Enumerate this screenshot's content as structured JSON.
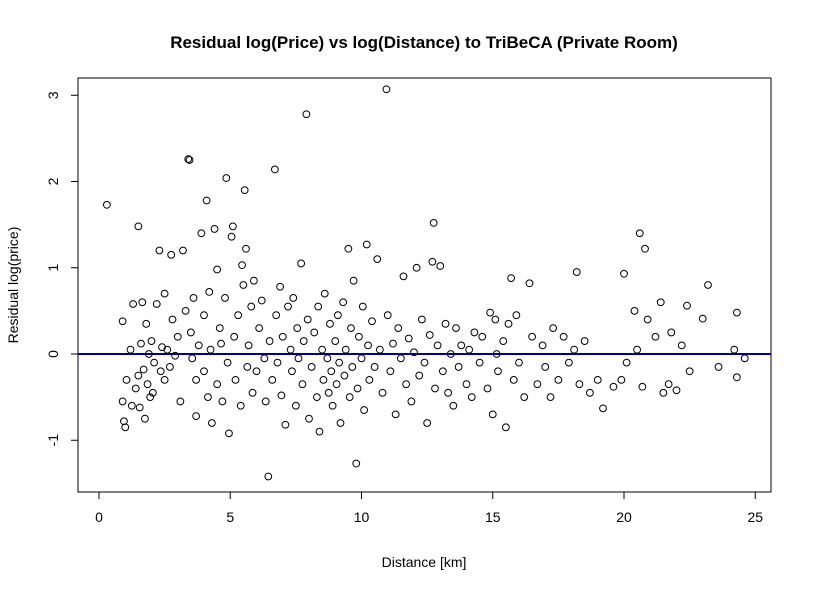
{
  "chart_data": {
    "type": "scatter",
    "title": "Residual log(Price) vs log(Distance) to TriBeCA (Private Room)",
    "xlabel": "Distance [km]",
    "ylabel": "Residual log(price)",
    "xlim": [
      -0.8,
      25.6
    ],
    "ylim": [
      -1.6,
      3.2
    ],
    "x_ticks": [
      0,
      5,
      10,
      15,
      20,
      25
    ],
    "x_tick_labels": [
      "0",
      "5",
      "10",
      "15",
      "20",
      "25"
    ],
    "y_ticks": [
      -1,
      0,
      1,
      2,
      3
    ],
    "y_tick_labels": [
      "-1",
      "0",
      "1",
      "2",
      "3"
    ],
    "grid": false,
    "legend": "none",
    "reference_line": {
      "y": 0,
      "color": "#00008B"
    },
    "marker": "open-circle",
    "point_color": "#000000",
    "points": [
      [
        0.3,
        1.73
      ],
      [
        0.9,
        0.38
      ],
      [
        0.9,
        -0.55
      ],
      [
        0.95,
        -0.78
      ],
      [
        1.0,
        -0.85
      ],
      [
        1.05,
        -0.3
      ],
      [
        1.2,
        0.05
      ],
      [
        1.25,
        -0.6
      ],
      [
        1.3,
        0.58
      ],
      [
        1.4,
        -0.4
      ],
      [
        1.5,
        1.48
      ],
      [
        1.5,
        -0.25
      ],
      [
        1.55,
        -0.62
      ],
      [
        1.6,
        0.12
      ],
      [
        1.65,
        0.6
      ],
      [
        1.7,
        -0.18
      ],
      [
        1.75,
        -0.75
      ],
      [
        1.8,
        0.35
      ],
      [
        1.85,
        -0.35
      ],
      [
        1.9,
        0.0
      ],
      [
        1.95,
        -0.5
      ],
      [
        2.0,
        0.15
      ],
      [
        2.05,
        -0.45
      ],
      [
        2.1,
        -0.1
      ],
      [
        2.2,
        0.58
      ],
      [
        2.3,
        1.2
      ],
      [
        2.35,
        -0.2
      ],
      [
        2.4,
        0.08
      ],
      [
        2.5,
        0.7
      ],
      [
        2.5,
        -0.3
      ],
      [
        2.6,
        0.05
      ],
      [
        2.7,
        -0.15
      ],
      [
        2.75,
        1.15
      ],
      [
        2.8,
        0.4
      ],
      [
        2.9,
        -0.02
      ],
      [
        3.0,
        0.2
      ],
      [
        3.1,
        -0.55
      ],
      [
        3.2,
        1.2
      ],
      [
        3.3,
        0.5
      ],
      [
        3.4,
        2.26
      ],
      [
        3.45,
        2.25
      ],
      [
        3.5,
        0.25
      ],
      [
        3.55,
        -0.05
      ],
      [
        3.6,
        0.65
      ],
      [
        3.7,
        -0.3
      ],
      [
        3.7,
        -0.72
      ],
      [
        3.8,
        0.1
      ],
      [
        3.9,
        1.4
      ],
      [
        4.0,
        0.45
      ],
      [
        4.0,
        -0.2
      ],
      [
        4.1,
        1.78
      ],
      [
        4.15,
        -0.5
      ],
      [
        4.2,
        0.72
      ],
      [
        4.25,
        0.05
      ],
      [
        4.3,
        -0.8
      ],
      [
        4.4,
        1.45
      ],
      [
        4.5,
        0.98
      ],
      [
        4.5,
        -0.35
      ],
      [
        4.6,
        0.3
      ],
      [
        4.65,
        0.12
      ],
      [
        4.7,
        -0.55
      ],
      [
        4.8,
        0.65
      ],
      [
        4.85,
        2.04
      ],
      [
        4.9,
        -0.1
      ],
      [
        4.95,
        -0.92
      ],
      [
        5.05,
        1.36
      ],
      [
        5.1,
        1.48
      ],
      [
        5.15,
        0.2
      ],
      [
        5.2,
        -0.3
      ],
      [
        5.3,
        0.45
      ],
      [
        5.4,
        -0.6
      ],
      [
        5.45,
        1.03
      ],
      [
        5.5,
        0.8
      ],
      [
        5.55,
        1.9
      ],
      [
        5.6,
        1.22
      ],
      [
        5.65,
        -0.15
      ],
      [
        5.7,
        0.1
      ],
      [
        5.8,
        0.55
      ],
      [
        5.85,
        -0.45
      ],
      [
        5.9,
        0.85
      ],
      [
        6.0,
        -0.2
      ],
      [
        6.1,
        0.3
      ],
      [
        6.2,
        0.62
      ],
      [
        6.3,
        -0.05
      ],
      [
        6.35,
        -0.55
      ],
      [
        6.45,
        -1.42
      ],
      [
        6.5,
        0.15
      ],
      [
        6.6,
        -0.3
      ],
      [
        6.7,
        2.14
      ],
      [
        6.75,
        0.45
      ],
      [
        6.8,
        -0.1
      ],
      [
        6.9,
        0.78
      ],
      [
        6.95,
        -0.48
      ],
      [
        7.0,
        0.2
      ],
      [
        7.1,
        -0.82
      ],
      [
        7.2,
        0.55
      ],
      [
        7.3,
        0.05
      ],
      [
        7.35,
        -0.2
      ],
      [
        7.4,
        0.65
      ],
      [
        7.5,
        -0.6
      ],
      [
        7.55,
        0.3
      ],
      [
        7.6,
        -0.05
      ],
      [
        7.7,
        1.05
      ],
      [
        7.75,
        -0.35
      ],
      [
        7.8,
        0.15
      ],
      [
        7.9,
        2.78
      ],
      [
        7.95,
        0.4
      ],
      [
        8.0,
        -0.75
      ],
      [
        8.1,
        -0.15
      ],
      [
        8.2,
        0.25
      ],
      [
        8.3,
        -0.5
      ],
      [
        8.35,
        0.55
      ],
      [
        8.4,
        -0.9
      ],
      [
        8.5,
        0.05
      ],
      [
        8.55,
        -0.3
      ],
      [
        8.6,
        0.7
      ],
      [
        8.7,
        -0.05
      ],
      [
        8.75,
        -0.45
      ],
      [
        8.8,
        0.35
      ],
      [
        8.85,
        -0.2
      ],
      [
        8.9,
        -0.6
      ],
      [
        9.0,
        0.15
      ],
      [
        9.05,
        -0.35
      ],
      [
        9.1,
        0.45
      ],
      [
        9.15,
        -0.1
      ],
      [
        9.2,
        -0.8
      ],
      [
        9.3,
        0.6
      ],
      [
        9.35,
        -0.25
      ],
      [
        9.4,
        0.05
      ],
      [
        9.5,
        1.22
      ],
      [
        9.55,
        -0.5
      ],
      [
        9.6,
        0.3
      ],
      [
        9.65,
        -0.15
      ],
      [
        9.7,
        0.85
      ],
      [
        9.8,
        -1.27
      ],
      [
        9.85,
        -0.4
      ],
      [
        9.9,
        0.2
      ],
      [
        10.0,
        -0.05
      ],
      [
        10.05,
        0.55
      ],
      [
        10.1,
        -0.65
      ],
      [
        10.2,
        1.27
      ],
      [
        10.25,
        0.1
      ],
      [
        10.3,
        -0.3
      ],
      [
        10.4,
        0.38
      ],
      [
        10.5,
        -0.15
      ],
      [
        10.6,
        1.1
      ],
      [
        10.7,
        0.05
      ],
      [
        10.8,
        -0.45
      ],
      [
        10.95,
        3.07
      ],
      [
        11.0,
        0.45
      ],
      [
        11.1,
        -0.2
      ],
      [
        11.2,
        0.12
      ],
      [
        11.3,
        -0.7
      ],
      [
        11.4,
        0.3
      ],
      [
        11.5,
        -0.05
      ],
      [
        11.6,
        0.9
      ],
      [
        11.7,
        -0.35
      ],
      [
        11.8,
        0.18
      ],
      [
        11.9,
        -0.55
      ],
      [
        12.0,
        0.02
      ],
      [
        12.1,
        1.0
      ],
      [
        12.2,
        -0.25
      ],
      [
        12.3,
        0.4
      ],
      [
        12.4,
        -0.1
      ],
      [
        12.5,
        -0.8
      ],
      [
        12.6,
        0.22
      ],
      [
        12.7,
        1.07
      ],
      [
        12.75,
        1.52
      ],
      [
        12.8,
        -0.4
      ],
      [
        12.9,
        0.1
      ],
      [
        13.0,
        1.02
      ],
      [
        13.1,
        -0.2
      ],
      [
        13.2,
        0.35
      ],
      [
        13.3,
        -0.45
      ],
      [
        13.4,
        0.0
      ],
      [
        13.5,
        -0.6
      ],
      [
        13.6,
        0.3
      ],
      [
        13.7,
        -0.15
      ],
      [
        13.8,
        0.1
      ],
      [
        14.0,
        -0.35
      ],
      [
        14.1,
        0.05
      ],
      [
        14.2,
        -0.5
      ],
      [
        14.3,
        0.25
      ],
      [
        14.5,
        -0.1
      ],
      [
        14.6,
        0.2
      ],
      [
        14.8,
        -0.4
      ],
      [
        14.9,
        0.48
      ],
      [
        15.0,
        -0.7
      ],
      [
        15.1,
        0.4
      ],
      [
        15.15,
        0.0
      ],
      [
        15.2,
        -0.2
      ],
      [
        15.4,
        0.15
      ],
      [
        15.5,
        -0.85
      ],
      [
        15.6,
        0.35
      ],
      [
        15.7,
        0.88
      ],
      [
        15.8,
        -0.3
      ],
      [
        15.9,
        0.45
      ],
      [
        16.0,
        -0.1
      ],
      [
        16.2,
        -0.5
      ],
      [
        16.4,
        0.82
      ],
      [
        16.5,
        0.2
      ],
      [
        16.7,
        -0.35
      ],
      [
        16.9,
        0.1
      ],
      [
        17.0,
        -0.15
      ],
      [
        17.2,
        -0.5
      ],
      [
        17.3,
        0.3
      ],
      [
        17.5,
        -0.3
      ],
      [
        17.7,
        0.2
      ],
      [
        17.9,
        -0.1
      ],
      [
        18.1,
        0.05
      ],
      [
        18.2,
        0.95
      ],
      [
        18.3,
        -0.35
      ],
      [
        18.5,
        0.15
      ],
      [
        18.7,
        -0.45
      ],
      [
        19.0,
        -0.3
      ],
      [
        19.2,
        -0.63
      ],
      [
        19.6,
        -0.38
      ],
      [
        19.9,
        -0.3
      ],
      [
        20.0,
        0.93
      ],
      [
        20.1,
        -0.1
      ],
      [
        20.4,
        0.5
      ],
      [
        20.5,
        0.05
      ],
      [
        20.6,
        1.4
      ],
      [
        20.7,
        -0.38
      ],
      [
        20.8,
        1.22
      ],
      [
        20.9,
        0.4
      ],
      [
        21.2,
        0.2
      ],
      [
        21.4,
        0.6
      ],
      [
        21.5,
        -0.45
      ],
      [
        21.7,
        -0.35
      ],
      [
        21.8,
        0.25
      ],
      [
        22.0,
        -0.42
      ],
      [
        22.2,
        0.1
      ],
      [
        22.4,
        0.56
      ],
      [
        22.5,
        -0.2
      ],
      [
        23.0,
        0.41
      ],
      [
        23.2,
        0.8
      ],
      [
        23.6,
        -0.15
      ],
      [
        24.2,
        0.05
      ],
      [
        24.3,
        0.48
      ],
      [
        24.3,
        -0.27
      ],
      [
        24.6,
        -0.05
      ]
    ]
  }
}
